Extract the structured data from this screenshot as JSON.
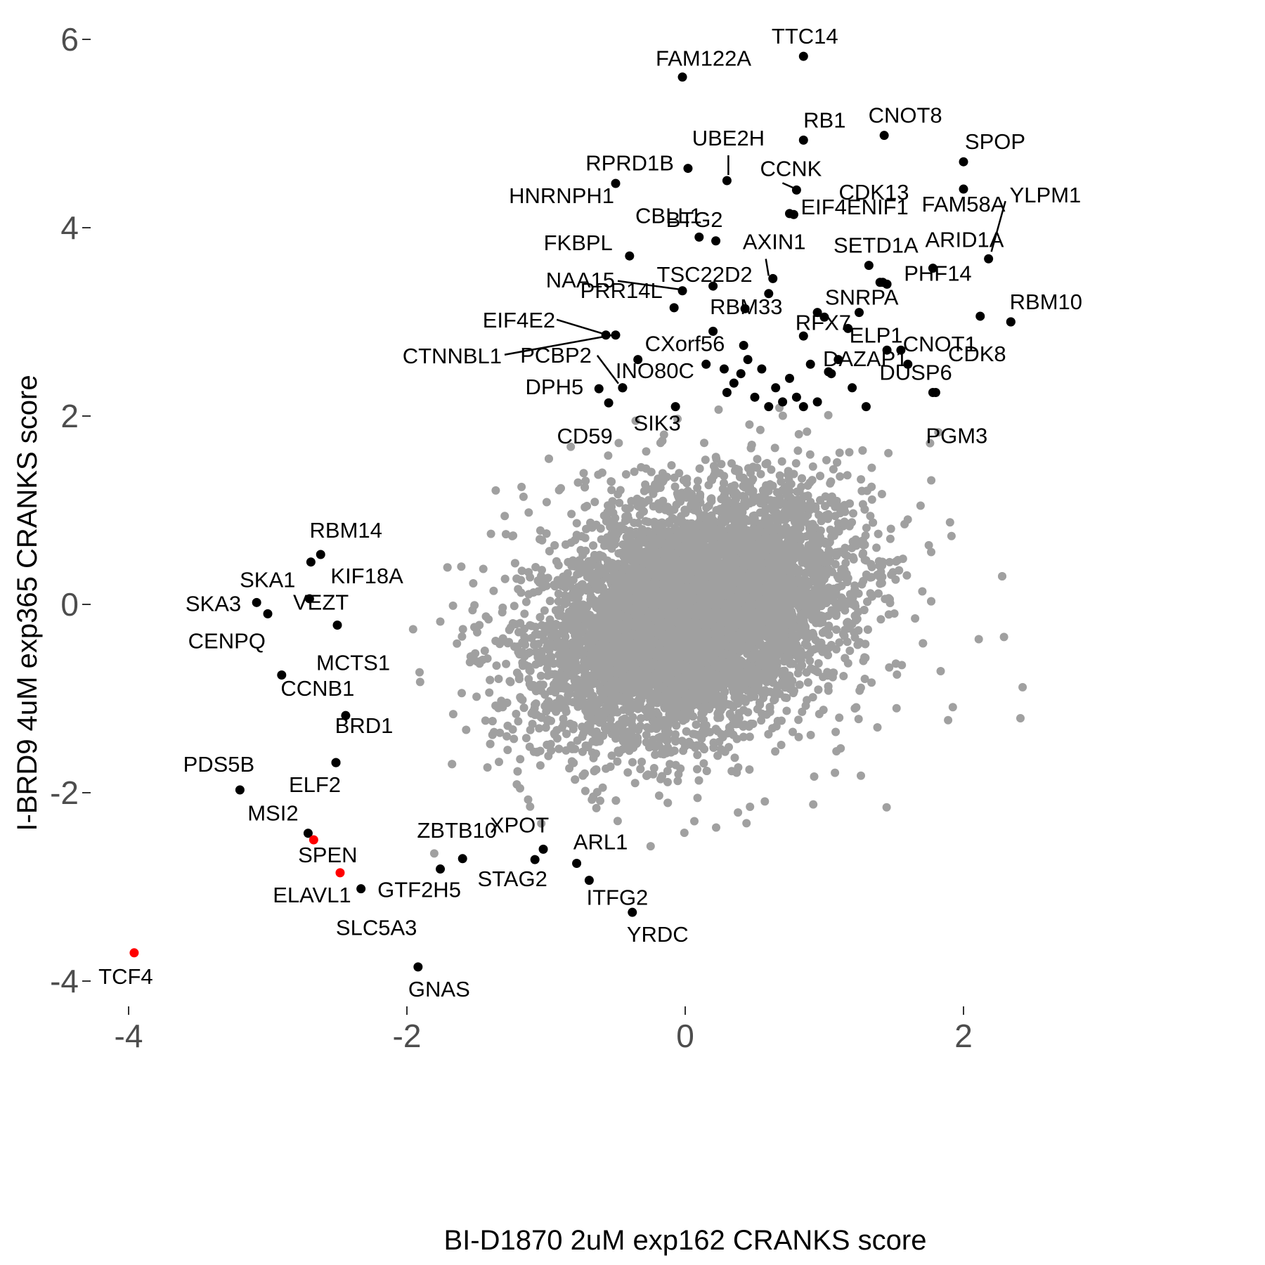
{
  "chart_data": {
    "type": "scatter",
    "title": "",
    "xlabel": "BI-D1870 2uM exp162 CRANKS score",
    "ylabel": "I-BRD9 4uM exp365 CRANKS score",
    "xlim": [
      -4.4,
      2.8
    ],
    "ylim": [
      -4.2,
      6.2
    ],
    "xticks": [
      -4,
      -2,
      0,
      2
    ],
    "yticks": [
      -4,
      -2,
      0,
      2,
      4,
      6
    ],
    "grid": false,
    "colors": {
      "background": "#ffffff",
      "other_genes": "#a0a0a0",
      "top_hits": "#000000",
      "highlight": "#ff0000",
      "tick_text": "#4d4d4d"
    },
    "background_points_note": "",
    "labeled_points": [
      {
        "gene": "TTC14",
        "x": 0.85,
        "y": 5.82,
        "color": "black"
      },
      {
        "gene": "FAM122A",
        "x": -0.02,
        "y": 5.6,
        "color": "black"
      },
      {
        "gene": "RB1",
        "x": 0.85,
        "y": 4.93,
        "color": "black"
      },
      {
        "gene": "CNOT8",
        "x": 1.43,
        "y": 4.98,
        "color": "black"
      },
      {
        "gene": "SPOP",
        "x": 2.0,
        "y": 4.7,
        "color": "black"
      },
      {
        "gene": "UBE2H",
        "x": 0.3,
        "y": 4.5,
        "color": "black"
      },
      {
        "gene": "RPRD1B",
        "x": 0.02,
        "y": 4.63,
        "color": "black"
      },
      {
        "gene": "CCNK",
        "x": 0.8,
        "y": 4.4,
        "color": "black"
      },
      {
        "gene": "CDK13",
        "x": 0.75,
        "y": 4.15,
        "color": "black"
      },
      {
        "gene": "HNRNPH1",
        "x": -0.5,
        "y": 4.47,
        "color": "black"
      },
      {
        "gene": "FAM58A",
        "x": 2.0,
        "y": 4.41,
        "color": "black"
      },
      {
        "gene": "CBLL1",
        "x": 0.1,
        "y": 3.9,
        "color": "black"
      },
      {
        "gene": "BTG2",
        "x": 0.22,
        "y": 3.86,
        "color": "black"
      },
      {
        "gene": "EIF4ENIF1",
        "x": 0.78,
        "y": 4.14,
        "color": "black"
      },
      {
        "gene": "YLPM1",
        "x": 2.18,
        "y": 3.67,
        "color": "black"
      },
      {
        "gene": "FKBPL",
        "x": -0.4,
        "y": 3.7,
        "color": "black"
      },
      {
        "gene": "AXIN1",
        "x": 0.63,
        "y": 3.46,
        "color": "black"
      },
      {
        "gene": "SETD1A",
        "x": 1.32,
        "y": 3.6,
        "color": "black"
      },
      {
        "gene": "ARID1A",
        "x": 1.78,
        "y": 3.57,
        "color": "black"
      },
      {
        "gene": "TSC22D2",
        "x": 0.2,
        "y": 3.38,
        "color": "black"
      },
      {
        "gene": "NAA15",
        "x": -0.02,
        "y": 3.33,
        "color": "black"
      },
      {
        "gene": "PHF14",
        "x": 1.4,
        "y": 3.42,
        "color": "black"
      },
      {
        "gene": "SNRPA",
        "x": 1.42,
        "y": 3.42,
        "color": "black"
      },
      {
        "gene": "RBM10",
        "x": 2.34,
        "y": 3.0,
        "color": "black"
      },
      {
        "gene": "PRR14L",
        "x": -0.08,
        "y": 3.15,
        "color": "black"
      },
      {
        "gene": "RBM33",
        "x": 0.43,
        "y": 3.14,
        "color": "black"
      },
      {
        "gene": "RFX7",
        "x": 1.0,
        "y": 3.05,
        "color": "black"
      },
      {
        "gene": "EIF4E2",
        "x": -0.57,
        "y": 2.86,
        "color": "black"
      },
      {
        "gene": "ELP1",
        "x": 1.17,
        "y": 2.93,
        "color": "black"
      },
      {
        "gene": "CNOT1",
        "x": 2.12,
        "y": 3.06,
        "color": "black"
      },
      {
        "gene": "CDK8",
        "x": 2.34,
        "y": 3.0,
        "color": "black"
      },
      {
        "gene": "CTNNBL1",
        "x": -0.5,
        "y": 2.86,
        "color": "black"
      },
      {
        "gene": "CXorf56",
        "x": -0.34,
        "y": 2.6,
        "color": "black"
      },
      {
        "gene": "PCBP2",
        "x": -0.45,
        "y": 2.3,
        "color": "black"
      },
      {
        "gene": "DAZAP1",
        "x": 1.03,
        "y": 2.47,
        "color": "black"
      },
      {
        "gene": "DUSP6",
        "x": 1.8,
        "y": 2.25,
        "color": "black"
      },
      {
        "gene": "INO80C",
        "x": -0.45,
        "y": 2.3,
        "color": "black"
      },
      {
        "gene": "DPH5",
        "x": -0.62,
        "y": 2.29,
        "color": "black"
      },
      {
        "gene": "PGM3",
        "x": 1.78,
        "y": 2.25,
        "color": "black"
      },
      {
        "gene": "CD59",
        "x": -0.55,
        "y": 2.14,
        "color": "black"
      },
      {
        "gene": "SIK3",
        "x": -0.07,
        "y": 2.1,
        "color": "black"
      },
      {
        "gene": "RBM14",
        "x": -2.62,
        "y": 0.53,
        "color": "black"
      },
      {
        "gene": "SKA1",
        "x": -2.69,
        "y": 0.45,
        "color": "black"
      },
      {
        "gene": "KIF18A",
        "x": -2.7,
        "y": 0.06,
        "color": "black"
      },
      {
        "gene": "SKA3",
        "x": -3.08,
        "y": 0.02,
        "color": "black"
      },
      {
        "gene": "VEZT",
        "x": -3.0,
        "y": -0.1,
        "color": "black"
      },
      {
        "gene": "MCTS1",
        "x": -2.5,
        "y": -0.22,
        "color": "black"
      },
      {
        "gene": "CENPQ",
        "x": -2.9,
        "y": -0.75,
        "color": "black"
      },
      {
        "gene": "CCNB1",
        "x": -2.44,
        "y": -1.18,
        "color": "black"
      },
      {
        "gene": "BRD1",
        "x": -2.51,
        "y": -1.68,
        "color": "black"
      },
      {
        "gene": "PDS5B",
        "x": -3.2,
        "y": -1.97,
        "color": "black"
      },
      {
        "gene": "ELF2",
        "x": -2.51,
        "y": -1.68,
        "color": "black"
      },
      {
        "gene": "MSI2",
        "x": -2.71,
        "y": -2.43,
        "color": "black"
      },
      {
        "gene": "SPEN",
        "x": -2.67,
        "y": -2.5,
        "color": "red"
      },
      {
        "gene": "ZBTB10",
        "x": -1.6,
        "y": -2.7,
        "color": "black"
      },
      {
        "gene": "XPOT",
        "x": -1.02,
        "y": -2.6,
        "color": "black"
      },
      {
        "gene": "ARL1",
        "x": -0.78,
        "y": -2.75,
        "color": "black"
      },
      {
        "gene": "ELAVL1",
        "x": -2.48,
        "y": -2.85,
        "color": "red"
      },
      {
        "gene": "GTF2H5",
        "x": -1.76,
        "y": -2.81,
        "color": "black"
      },
      {
        "gene": "STAG2",
        "x": -1.08,
        "y": -2.71,
        "color": "black"
      },
      {
        "gene": "ITFG2",
        "x": -0.69,
        "y": -2.93,
        "color": "black"
      },
      {
        "gene": "SLC5A3",
        "x": -2.33,
        "y": -3.02,
        "color": "black"
      },
      {
        "gene": "YRDC",
        "x": -0.38,
        "y": -3.27,
        "color": "black"
      },
      {
        "gene": "TCF4",
        "x": -3.96,
        "y": -3.7,
        "color": "red"
      },
      {
        "gene": "GNAS",
        "x": -1.92,
        "y": -3.85,
        "color": "black"
      }
    ]
  }
}
